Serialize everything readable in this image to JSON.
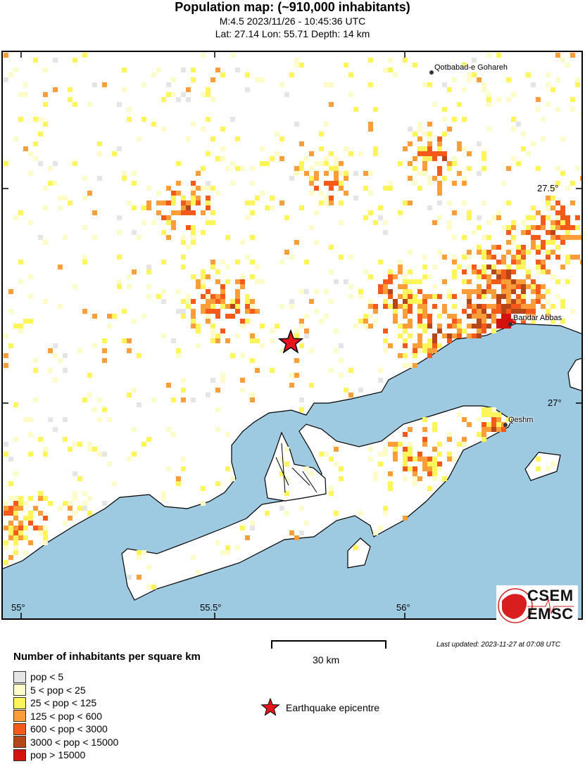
{
  "header": {
    "title": "Population map: (~910,000 inhabitants)",
    "event_line": "M:4.5 2023/11/26 - 10:45:36 UTC",
    "location_line": "Lat: 27.14 Lon: 55.71 Depth: 14 km"
  },
  "map": {
    "latitude_labels": [
      "27.5°",
      "27°"
    ],
    "longitude_labels": [
      "55°",
      "55.5°",
      "56°"
    ],
    "places": [
      {
        "name": "Qotbabad-e Gohareh"
      },
      {
        "name": "Bandar Abbas"
      },
      {
        "name": "Qeshm"
      }
    ],
    "epicentre": {
      "lat": 27.14,
      "lon": 55.71
    },
    "colors": {
      "sea": "#9ecae1",
      "land": "#ffffff",
      "epicentre": "#e8141c"
    }
  },
  "logo": {
    "line1": "CSEM",
    "line2": "EMSC"
  },
  "scale": {
    "label": "30 km"
  },
  "last_updated": "Last updated: 2023-11-27 at 07:08 UTC",
  "legend": {
    "title": "Number of inhabitants per square km",
    "items": [
      {
        "label": "pop < 5",
        "color": "#e5e5e5"
      },
      {
        "label": "5 < pop < 25",
        "color": "#fdfbc8"
      },
      {
        "label": "25 < pop < 125",
        "color": "#fdf55a"
      },
      {
        "label": "125 < pop < 600",
        "color": "#fb9e3a"
      },
      {
        "label": "600 < pop < 3000",
        "color": "#f55a1a"
      },
      {
        "label": "3000 < pop < 15000",
        "color": "#b5461a"
      },
      {
        "label": "pop > 15000",
        "color": "#d3120e"
      }
    ],
    "epicentre_label": "Earthquake epicentre"
  }
}
